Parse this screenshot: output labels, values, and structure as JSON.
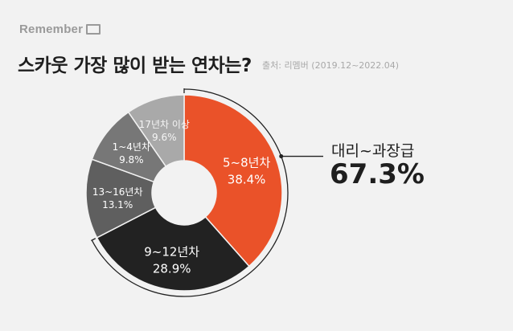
{
  "brand": {
    "name": "Remember"
  },
  "title": "스카웃 가장 많이 받는 연차는?",
  "source": "출처: 리멤버 (2019.12~2022.04)",
  "callout": {
    "label": "대리~과장급",
    "value": "67.3%"
  },
  "colors": {
    "background": "#f2f2f2",
    "highlight": "#ea5229",
    "dark": "#222222",
    "gray1": "#5f5f5f",
    "gray2": "#777777",
    "gray3": "#a9a9a9",
    "gray4": "#d2d2d2"
  },
  "chart_data": {
    "type": "pie",
    "donut": true,
    "slices": [
      {
        "label": "5~8년차",
        "value": 38.4,
        "value_label": "38.4%",
        "color": "#ea5229"
      },
      {
        "label": "9~12년차",
        "value": 28.9,
        "value_label": "28.9%",
        "color": "#222222"
      },
      {
        "label": "13~16년차",
        "value": 13.1,
        "value_label": "13.1%",
        "color": "#5f5f5f"
      },
      {
        "label": "1~4년차",
        "value": 9.8,
        "value_label": "9.8%",
        "color": "#777777"
      },
      {
        "label": "17년차 이상",
        "value": 9.6,
        "value_label": "9.6%",
        "color": "#a9a9a9"
      }
    ],
    "highlight_group": {
      "label": "대리~과장급",
      "value": 67.3,
      "slices": [
        "5~8년차",
        "9~12년차"
      ]
    }
  }
}
